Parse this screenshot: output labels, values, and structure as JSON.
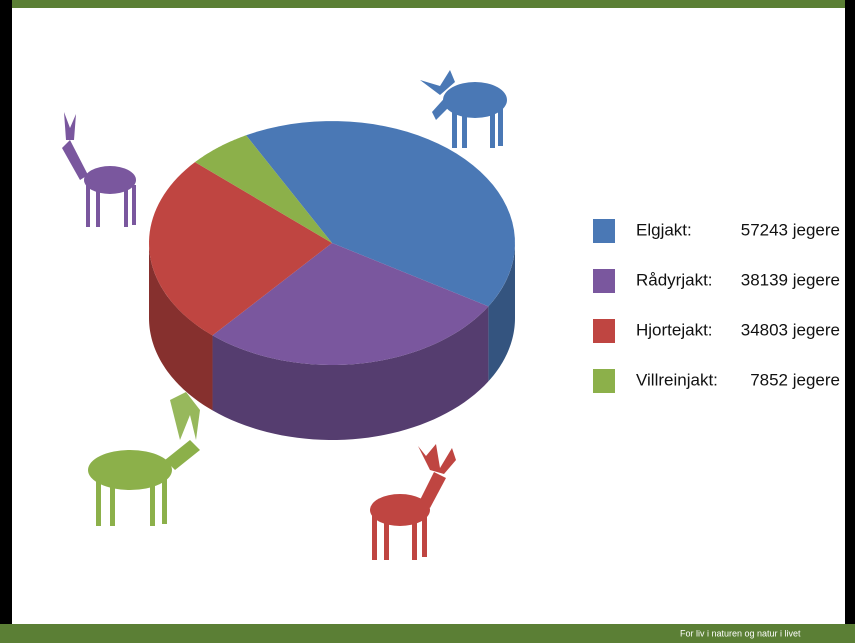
{
  "chart_data": {
    "type": "pie",
    "categories": [
      "Elgjakt:",
      "Rådyrjakt:",
      "Hjortejakt:",
      "Villreinjakt:"
    ],
    "values": [
      57243,
      38139,
      34803,
      7852
    ],
    "value_labels": [
      "57243 jegere",
      "38139 jegere",
      "34803 jegere",
      "7852 jegere"
    ],
    "colors": [
      "#4a78b5",
      "#7a579e",
      "#bf4541",
      "#8cb04a"
    ]
  },
  "footer": "For liv i naturen og natur i livet"
}
